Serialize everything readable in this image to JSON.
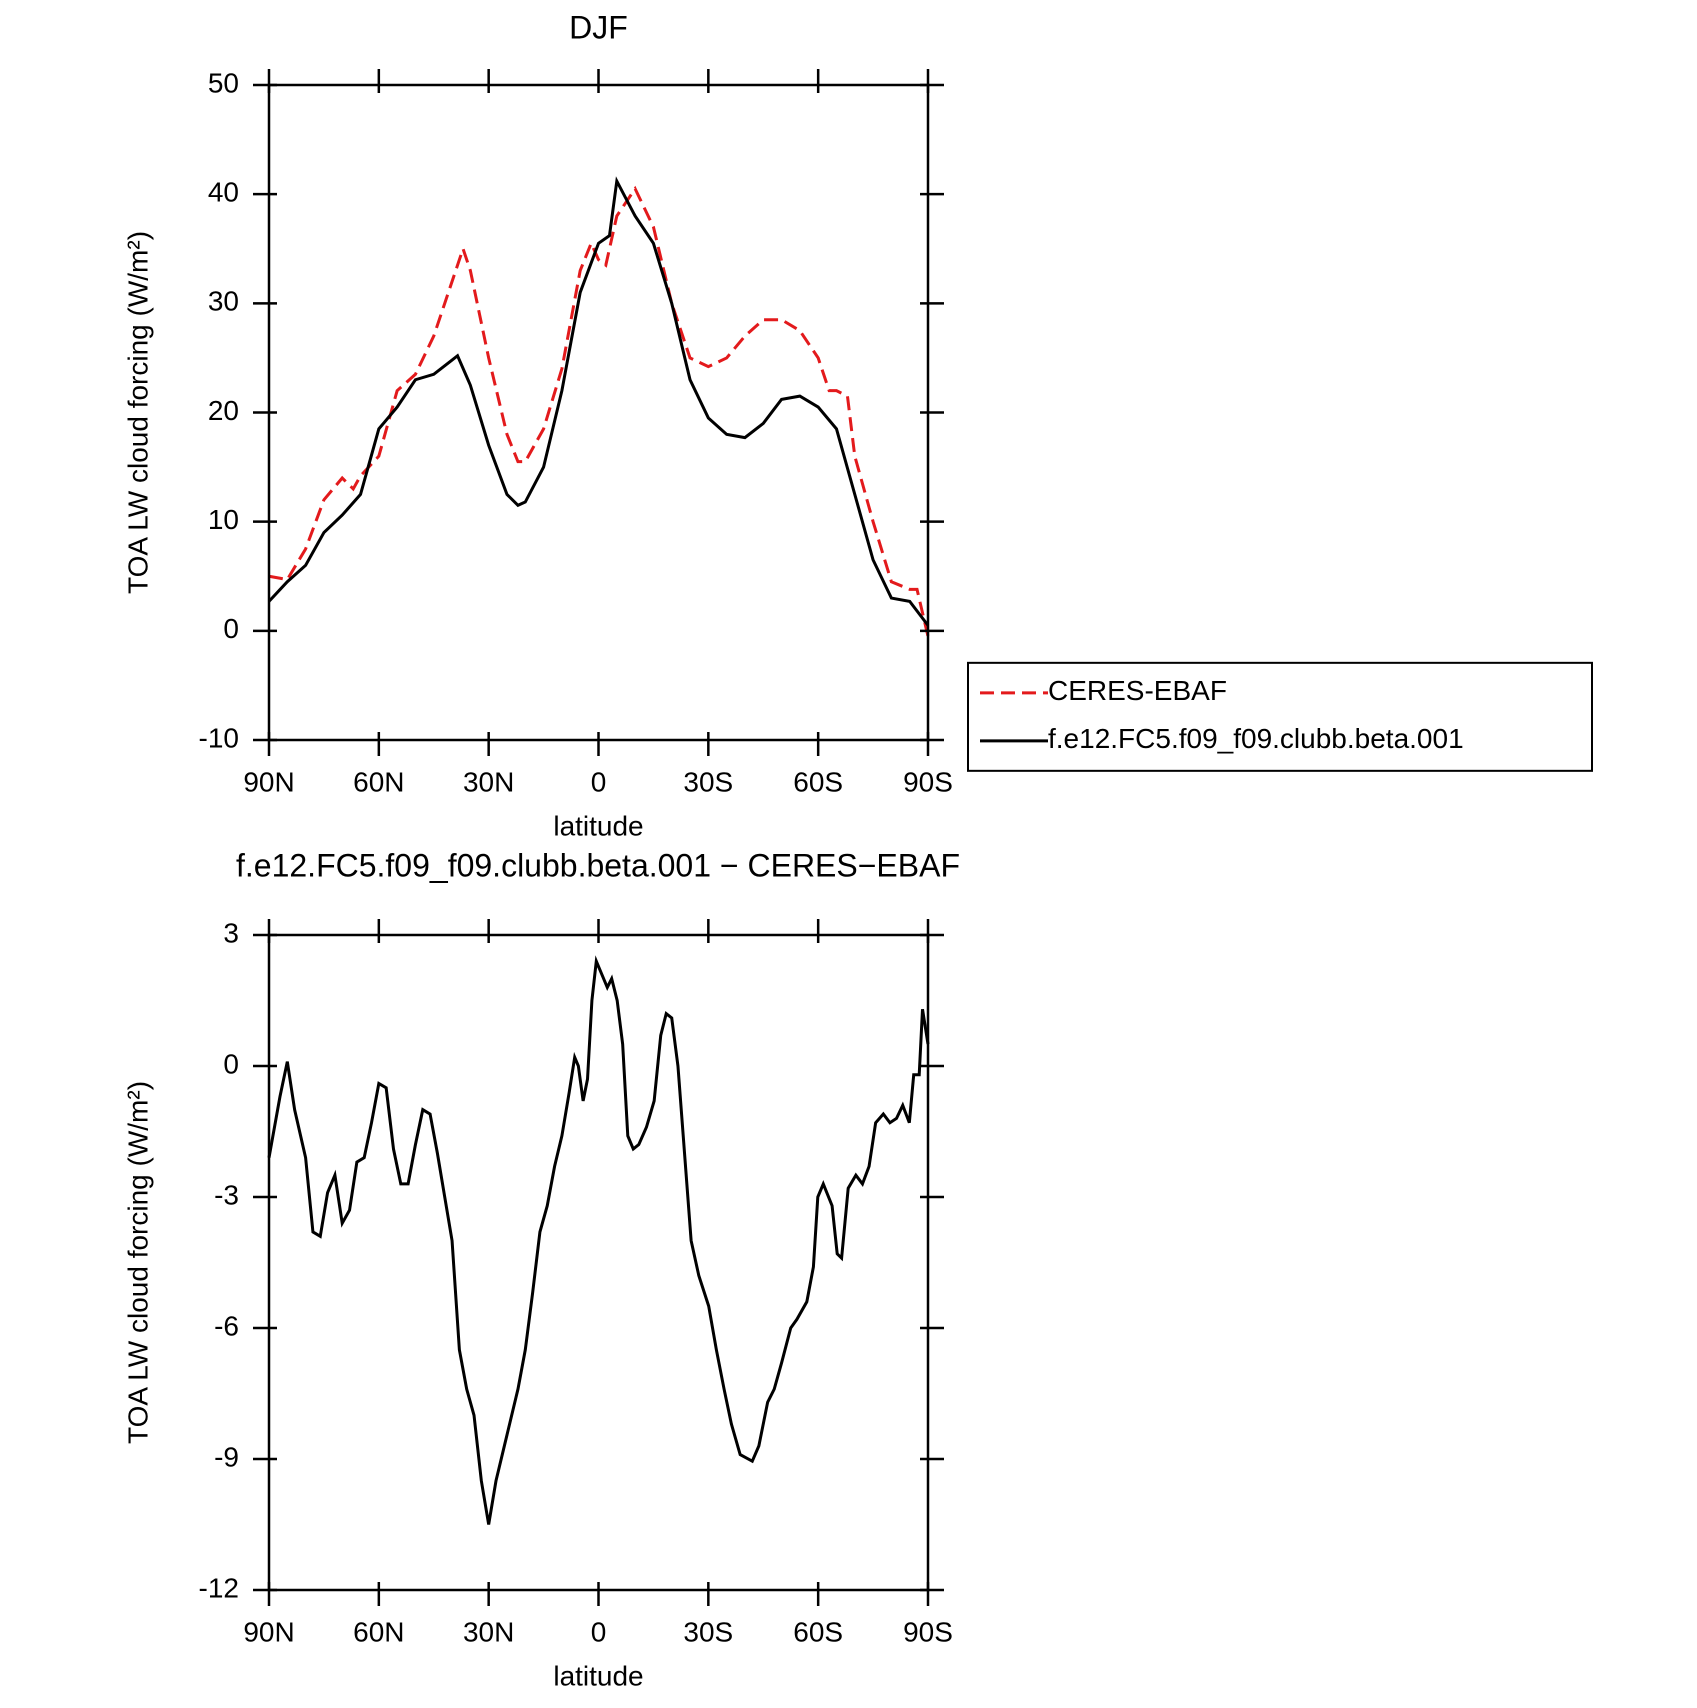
{
  "chart_data": [
    {
      "type": "line",
      "title": "DJF",
      "xlabel": "latitude",
      "ylabel": "TOA LW cloud forcing (W/m²)",
      "xlim": [
        90,
        -90
      ],
      "xticks": [
        {
          "value": 90,
          "label": "90N"
        },
        {
          "value": 60,
          "label": "60N"
        },
        {
          "value": 30,
          "label": "30N"
        },
        0,
        {
          "value": -30,
          "label": "30S"
        },
        {
          "value": -60,
          "label": "60S"
        },
        {
          "value": -90,
          "label": "90S"
        }
      ],
      "ylim": [
        -10,
        50
      ],
      "yticks": [
        -10,
        0,
        10,
        20,
        30,
        40,
        50
      ],
      "legend": "right",
      "series": [
        {
          "name": "CERES-EBAF",
          "color": "#e31a1c",
          "dash": true,
          "x": [
            90,
            85,
            80,
            75,
            70,
            67,
            65,
            60,
            55,
            50,
            45,
            40,
            37,
            35,
            30,
            25,
            22,
            20,
            15,
            10,
            5,
            2,
            0,
            -2,
            -5,
            -10,
            -15,
            -20,
            -25,
            -30,
            -35,
            -40,
            -45,
            -50,
            -55,
            -60,
            -63,
            -65,
            -68,
            -70,
            -75,
            -80,
            -85,
            -87,
            -90
          ],
          "values": [
            5,
            4.7,
            7.5,
            12,
            14,
            13,
            14.2,
            16,
            22,
            23.5,
            27,
            32,
            35,
            33,
            25,
            18,
            15.5,
            15.5,
            18.5,
            24,
            33,
            35.5,
            34,
            33.5,
            38,
            40.5,
            37,
            30,
            25,
            24.2,
            25,
            27,
            28.5,
            28.5,
            27.5,
            25,
            22,
            22,
            21.5,
            16,
            10,
            4.5,
            3.8,
            3.8,
            -0.5
          ]
        },
        {
          "name": "f.e12.FC5.f09_f09.clubb.beta.001",
          "color": "#000000",
          "dash": false,
          "x": [
            90,
            85,
            80,
            75,
            70,
            65,
            60,
            55,
            50,
            45,
            40,
            38.5,
            35,
            30,
            25,
            22,
            20,
            15,
            10,
            5,
            0,
            -3,
            -5,
            -10,
            -15,
            -20,
            -25,
            -30,
            -35,
            -40,
            -45,
            -50,
            -55,
            -60,
            -65,
            -70,
            -75,
            -80,
            -85,
            -90
          ],
          "values": [
            2.7,
            4.5,
            6,
            9,
            10.6,
            12.5,
            18.5,
            20.5,
            23,
            23.5,
            24.8,
            25.2,
            22.5,
            17,
            12.5,
            11.5,
            11.8,
            15,
            22,
            31,
            35.5,
            36.2,
            41.2,
            38,
            35.5,
            30,
            23,
            19.5,
            18,
            17.7,
            19,
            21.2,
            21.5,
            20.5,
            18.5,
            12.5,
            6.5,
            3,
            2.7,
            0.5
          ]
        }
      ]
    },
    {
      "type": "line",
      "title": "f.e12.FC5.f09_f09.clubb.beta.001 − CERES−EBAF",
      "xlabel": "latitude",
      "ylabel": "TOA LW cloud forcing (W/m²)",
      "xlim": [
        90,
        -90
      ],
      "xticks": [
        {
          "value": 90,
          "label": "90N"
        },
        {
          "value": 60,
          "label": "60N"
        },
        {
          "value": 30,
          "label": "30N"
        },
        0,
        {
          "value": -30,
          "label": "30S"
        },
        {
          "value": -60,
          "label": "60S"
        },
        {
          "value": -90,
          "label": "90S"
        }
      ],
      "ylim": [
        -12,
        3
      ],
      "yticks": [
        -12,
        -9,
        -6,
        -3,
        0,
        3
      ],
      "series": [
        {
          "color": "#000000",
          "dash": false,
          "x": [
            90,
            87,
            85,
            83,
            80,
            78,
            76,
            74,
            72,
            70,
            68,
            66,
            64,
            62,
            60,
            58,
            56,
            54,
            52,
            50,
            48,
            46,
            44,
            42,
            40,
            38,
            36,
            34,
            32,
            30,
            28,
            26,
            24,
            22,
            20,
            18,
            16,
            14,
            12,
            10,
            8,
            6.5,
            5.5,
            4.2,
            3,
            1.8,
            0.6,
            -0.9,
            -2.4,
            -3.6,
            -5.1,
            -6.6,
            -8,
            -9.5,
            -11,
            -13.1,
            -15.2,
            -17,
            -18.5,
            -20,
            -21.7,
            -23.5,
            -25.3,
            -27.4,
            -30.1,
            -32.2,
            -34.3,
            -36.3,
            -38.7,
            -42,
            -43.8,
            -46.2,
            -48,
            -50,
            -52.5,
            -54.2,
            -56.9,
            -58.7,
            -59.9,
            -61.4,
            -63.8,
            -65.2,
            -66.4,
            -68.2,
            -70.3,
            -72.1,
            -73.9,
            -75.7,
            -77.8,
            -79.6,
            -81.4,
            -83.1,
            -84.9,
            -86.1,
            -87.6,
            -88.5,
            -90
          ],
          "values": [
            -2.1,
            -0.7,
            0.1,
            -1,
            -2.1,
            -3.8,
            -3.9,
            -2.9,
            -2.5,
            -3.6,
            -3.3,
            -2.2,
            -2.1,
            -1.3,
            -0.4,
            -0.5,
            -1.9,
            -2.7,
            -2.7,
            -1.8,
            -1,
            -1.1,
            -2,
            -3,
            -4,
            -6.5,
            -7.4,
            -8,
            -9.5,
            -10.5,
            -9.5,
            -8.8,
            -8.1,
            -7.4,
            -6.5,
            -5.2,
            -3.8,
            -3.2,
            -2.3,
            -1.6,
            -0.6,
            0.2,
            0,
            -0.8,
            -0.3,
            1.5,
            2.4,
            2.1,
            1.8,
            2,
            1.5,
            0.5,
            -1.6,
            -1.9,
            -1.8,
            -1.4,
            -0.8,
            0.7,
            1.2,
            1.1,
            0,
            -2,
            -4,
            -4.8,
            -5.5,
            -6.5,
            -7.4,
            -8.2,
            -8.9,
            -9.05,
            -8.7,
            -7.7,
            -7.4,
            -6.8,
            -6,
            -5.8,
            -5.4,
            -4.6,
            -3,
            -2.7,
            -3.2,
            -4.3,
            -4.4,
            -2.8,
            -2.5,
            -2.7,
            -2.3,
            -1.3,
            -1.1,
            -1.3,
            -1.2,
            -0.9,
            -1.3,
            -0.2,
            -0.2,
            1.3,
            0.5
          ]
        }
      ]
    }
  ]
}
